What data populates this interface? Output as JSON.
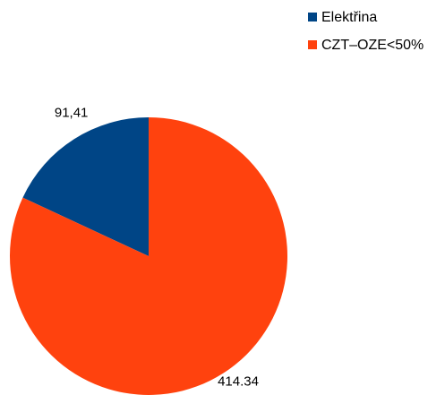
{
  "chart_data": {
    "type": "pie",
    "series": [
      {
        "name": "Elektřina",
        "value": 91.41,
        "label": "91,41",
        "color": "#004586"
      },
      {
        "name": "CZT–OZE<50%",
        "value": 414.34,
        "label": "414.34",
        "color": "#ff420e"
      }
    ],
    "legend": "top-right",
    "start_angle_deg": 0,
    "direction": "counterclockwise-from-top"
  }
}
